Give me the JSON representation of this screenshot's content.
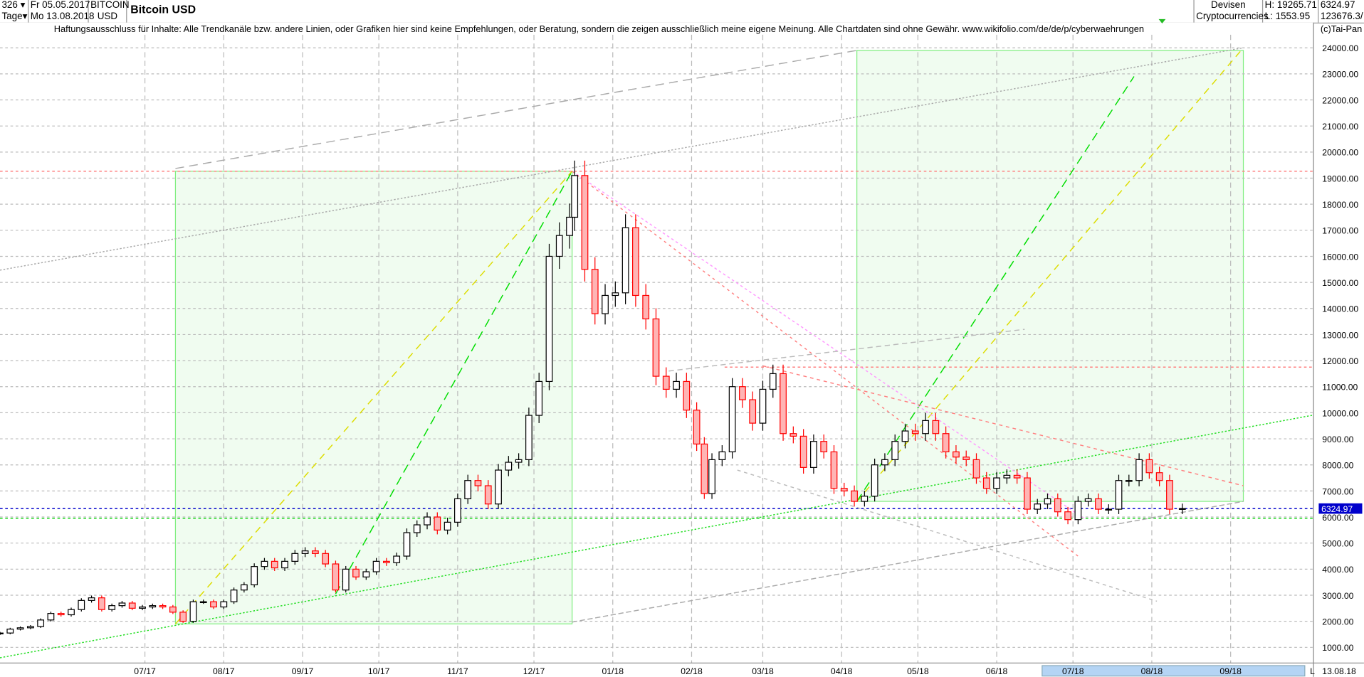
{
  "header": {
    "bar_count": "326",
    "period": "Tage",
    "start_date": "Fr 05.05.2017",
    "end_date": "Mo 13.08.2018",
    "symbol_line1": "BITCOIN",
    "symbol_line2": "USD",
    "title": "Bitcoin USD",
    "category_line1": "Devisen",
    "category_line2": "Cryptocurrencies",
    "high": "H: 19265.71",
    "low": "L: 1553.95",
    "last": "6324.97",
    "volume": "123676.3/"
  },
  "disclaimer": "Haftungsausschluss für Inhalte: Alle Trendkanäle bzw. andere Linien, oder Grafiken hier sind keine Empfehlungen, oder Beratung, sondern die zeigen ausschließlich meine eigene Meinung. Alle Chartdaten sind ohne Gewähr.  www.wikifolio.com/de/de/p/cyberwaehrungen",
  "copyright": "(c)Tai-Pan",
  "footer": {
    "scroll_marker": "L",
    "last_date": "13.08.18"
  },
  "colors": {
    "up_border": "#000000",
    "up_fill": "#ffffff",
    "down_border": "#ff0000",
    "down_fill": "#ffb4b4",
    "box_fill": "#f0fcf0",
    "box_border": "#80ee80",
    "current_price": "#0000cc",
    "grid": "#bbbbbb"
  },
  "chart_data": {
    "type": "candlestick",
    "title": "Bitcoin USD",
    "ylim": [
      0,
      25000
    ],
    "xlim": [
      "2017-05-05",
      "2018-10-08"
    ],
    "grid": true,
    "y_ticks": [
      1000,
      2000,
      3000,
      4000,
      5000,
      6000,
      7000,
      8000,
      9000,
      10000,
      11000,
      12000,
      13000,
      14000,
      15000,
      16000,
      17000,
      18000,
      19000,
      20000,
      21000,
      22000,
      23000,
      24000
    ],
    "x_ticks": [
      {
        "date": "2017-07-01",
        "label": "07/17"
      },
      {
        "date": "2017-08-01",
        "label": "08/17"
      },
      {
        "date": "2017-09-01",
        "label": "09/17"
      },
      {
        "date": "2017-10-01",
        "label": "10/17"
      },
      {
        "date": "2017-11-01",
        "label": "11/17"
      },
      {
        "date": "2017-12-01",
        "label": "12/17"
      },
      {
        "date": "2018-01-01",
        "label": "01/18"
      },
      {
        "date": "2018-02-01",
        "label": "02/18"
      },
      {
        "date": "2018-03-01",
        "label": "03/18"
      },
      {
        "date": "2018-04-01",
        "label": "04/18"
      },
      {
        "date": "2018-05-01",
        "label": "05/18"
      },
      {
        "date": "2018-06-01",
        "label": "06/18"
      },
      {
        "date": "2018-07-01",
        "label": "07/18"
      },
      {
        "date": "2018-08-01",
        "label": "08/18"
      },
      {
        "date": "2018-09-01",
        "label": "09/18"
      }
    ],
    "current_price": {
      "value": 6324.97,
      "label": "6324.97"
    },
    "closes": [
      [
        "2017-05-05",
        1550
      ],
      [
        "2017-05-09",
        1700
      ],
      [
        "2017-05-13",
        1750
      ],
      [
        "2017-05-17",
        1800
      ],
      [
        "2017-05-21",
        2050
      ],
      [
        "2017-05-25",
        2300
      ],
      [
        "2017-05-29",
        2250
      ],
      [
        "2017-06-02",
        2450
      ],
      [
        "2017-06-06",
        2800
      ],
      [
        "2017-06-10",
        2900
      ],
      [
        "2017-06-14",
        2450
      ],
      [
        "2017-06-18",
        2600
      ],
      [
        "2017-06-22",
        2700
      ],
      [
        "2017-06-26",
        2500
      ],
      [
        "2017-06-30",
        2550
      ],
      [
        "2017-07-04",
        2600
      ],
      [
        "2017-07-08",
        2550
      ],
      [
        "2017-07-12",
        2350
      ],
      [
        "2017-07-16",
        2000
      ],
      [
        "2017-07-20",
        2750
      ],
      [
        "2017-07-24",
        2750
      ],
      [
        "2017-07-28",
        2550
      ],
      [
        "2017-08-01",
        2750
      ],
      [
        "2017-08-05",
        3200
      ],
      [
        "2017-08-09",
        3400
      ],
      [
        "2017-08-13",
        4100
      ],
      [
        "2017-08-17",
        4300
      ],
      [
        "2017-08-21",
        4050
      ],
      [
        "2017-08-25",
        4300
      ],
      [
        "2017-08-29",
        4600
      ],
      [
        "2017-09-02",
        4700
      ],
      [
        "2017-09-06",
        4600
      ],
      [
        "2017-09-10",
        4200
      ],
      [
        "2017-09-14",
        3200
      ],
      [
        "2017-09-18",
        4000
      ],
      [
        "2017-09-22",
        3700
      ],
      [
        "2017-09-26",
        3900
      ],
      [
        "2017-09-30",
        4300
      ],
      [
        "2017-10-04",
        4250
      ],
      [
        "2017-10-08",
        4500
      ],
      [
        "2017-10-12",
        5400
      ],
      [
        "2017-10-16",
        5700
      ],
      [
        "2017-10-20",
        6000
      ],
      [
        "2017-10-24",
        5500
      ],
      [
        "2017-10-28",
        5800
      ],
      [
        "2017-11-01",
        6700
      ],
      [
        "2017-11-05",
        7400
      ],
      [
        "2017-11-09",
        7200
      ],
      [
        "2017-11-13",
        6500
      ],
      [
        "2017-11-17",
        7800
      ],
      [
        "2017-11-21",
        8100
      ],
      [
        "2017-11-25",
        8200
      ],
      [
        "2017-11-29",
        9900
      ],
      [
        "2017-12-03",
        11200
      ],
      [
        "2017-12-07",
        16000
      ],
      [
        "2017-12-11",
        16800
      ],
      [
        "2017-12-15",
        17500
      ],
      [
        "2017-12-17",
        19100
      ],
      [
        "2017-12-21",
        15500
      ],
      [
        "2017-12-25",
        13800
      ],
      [
        "2017-12-29",
        14500
      ],
      [
        "2018-01-02",
        14600
      ],
      [
        "2018-01-06",
        17100
      ],
      [
        "2018-01-10",
        14500
      ],
      [
        "2018-01-14",
        13600
      ],
      [
        "2018-01-18",
        11400
      ],
      [
        "2018-01-22",
        10900
      ],
      [
        "2018-01-26",
        11200
      ],
      [
        "2018-01-30",
        10100
      ],
      [
        "2018-02-03",
        8800
      ],
      [
        "2018-02-06",
        6900
      ],
      [
        "2018-02-09",
        8200
      ],
      [
        "2018-02-13",
        8500
      ],
      [
        "2018-02-17",
        11000
      ],
      [
        "2018-02-21",
        10500
      ],
      [
        "2018-02-25",
        9600
      ],
      [
        "2018-03-01",
        10900
      ],
      [
        "2018-03-05",
        11500
      ],
      [
        "2018-03-09",
        9200
      ],
      [
        "2018-03-13",
        9100
      ],
      [
        "2018-03-17",
        7900
      ],
      [
        "2018-03-21",
        8900
      ],
      [
        "2018-03-25",
        8500
      ],
      [
        "2018-03-29",
        7100
      ],
      [
        "2018-04-02",
        7000
      ],
      [
        "2018-04-06",
        6600
      ],
      [
        "2018-04-10",
        6800
      ],
      [
        "2018-04-14",
        8000
      ],
      [
        "2018-04-18",
        8200
      ],
      [
        "2018-04-22",
        8900
      ],
      [
        "2018-04-26",
        9300
      ],
      [
        "2018-04-30",
        9200
      ],
      [
        "2018-05-04",
        9700
      ],
      [
        "2018-05-08",
        9200
      ],
      [
        "2018-05-12",
        8500
      ],
      [
        "2018-05-16",
        8300
      ],
      [
        "2018-05-20",
        8200
      ],
      [
        "2018-05-24",
        7500
      ],
      [
        "2018-05-28",
        7100
      ],
      [
        "2018-06-01",
        7500
      ],
      [
        "2018-06-05",
        7600
      ],
      [
        "2018-06-09",
        7500
      ],
      [
        "2018-06-13",
        6300
      ],
      [
        "2018-06-17",
        6500
      ],
      [
        "2018-06-21",
        6700
      ],
      [
        "2018-06-25",
        6200
      ],
      [
        "2018-06-29",
        5900
      ],
      [
        "2018-07-03",
        6600
      ],
      [
        "2018-07-07",
        6700
      ],
      [
        "2018-07-11",
        6300
      ],
      [
        "2018-07-15",
        6300
      ],
      [
        "2018-07-19",
        7400
      ],
      [
        "2018-07-23",
        7400
      ],
      [
        "2018-07-27",
        8200
      ],
      [
        "2018-07-31",
        7700
      ],
      [
        "2018-08-04",
        7400
      ],
      [
        "2018-08-08",
        6300
      ],
      [
        "2018-08-13",
        6325
      ]
    ],
    "drawings": [
      {
        "kind": "rect",
        "from": [
          "2017-07-13",
          1900
        ],
        "to": [
          "2017-12-16",
          19266
        ]
      },
      {
        "kind": "rect",
        "from": [
          "2018-04-07",
          6600
        ],
        "to": [
          "2018-09-06",
          23900
        ]
      },
      {
        "kind": "hline",
        "value": 19266,
        "from": "2017-05-05",
        "color": "#ff8080",
        "dash": "3,3"
      },
      {
        "kind": "hline",
        "value": 11750,
        "from": "2018-02-14",
        "color": "#ff8080",
        "dash": "3,3"
      },
      {
        "kind": "hline",
        "value": 6324.97,
        "from": "2017-05-05",
        "color": "#0000cc",
        "dash": "3,3"
      },
      {
        "kind": "hline",
        "value": 5950,
        "from": "2017-05-05",
        "color": "#22dd22",
        "dash": "3,3"
      },
      {
        "kind": "line",
        "from": [
          "2017-05-05",
          600
        ],
        "to": [
          "2018-10-03",
          9900
        ],
        "color": "#22dd22",
        "dash": "2,2"
      },
      {
        "kind": "line",
        "from": [
          "2017-05-05",
          15470
        ],
        "to": [
          "2018-09-06",
          24000
        ],
        "color": "#aaaaaa",
        "dash": "2,2"
      },
      {
        "kind": "line",
        "from": [
          "2017-07-13",
          19370
        ],
        "to": [
          "2018-04-07",
          23900
        ],
        "color": "#aaaaaa",
        "dash": "10,6"
      },
      {
        "kind": "line",
        "from": [
          "2017-12-16",
          1970
        ],
        "to": [
          "2018-09-06",
          6600
        ],
        "color": "#aaaaaa",
        "dash": "6,3"
      },
      {
        "kind": "line",
        "from": [
          "2017-07-13",
          1900
        ],
        "to": [
          "2017-12-16",
          19266
        ],
        "color": "#dddd00",
        "dash": "8,6"
      },
      {
        "kind": "line",
        "from": [
          "2018-04-07",
          6600
        ],
        "to": [
          "2018-09-06",
          24000
        ],
        "color": "#dddd00",
        "dash": "8,6"
      },
      {
        "kind": "line",
        "from": [
          "2017-09-14",
          3050
        ],
        "to": [
          "2017-12-16",
          19266
        ],
        "color": "#00dd00",
        "dash": "10,6"
      },
      {
        "kind": "line",
        "from": [
          "2018-04-07",
          6600
        ],
        "to": [
          "2018-07-25",
          22900
        ],
        "color": "#00dd00",
        "dash": "10,6"
      },
      {
        "kind": "line",
        "from": [
          "2017-12-16",
          19266
        ],
        "to": [
          "2018-07-06",
          5900
        ],
        "color": "#ff99ff",
        "dash": "3,3"
      },
      {
        "kind": "line",
        "from": [
          "2017-12-16",
          19266
        ],
        "to": [
          "2018-07-03",
          4500
        ],
        "color": "#ff8080",
        "dash": "3,4"
      },
      {
        "kind": "line",
        "from": [
          "2018-03-01",
          11800
        ],
        "to": [
          "2018-09-06",
          7200
        ],
        "color": "#ff8080",
        "dash": "4,4"
      },
      {
        "kind": "line",
        "from": [
          "2018-02-19",
          7800
        ],
        "to": [
          "2018-08-03",
          2770
        ],
        "color": "#bbbbbb",
        "dash": "4,4"
      },
      {
        "kind": "line",
        "from": [
          "2018-01-23",
          11600
        ],
        "to": [
          "2018-06-12",
          13200
        ],
        "color": "#bbbbbb",
        "dash": "6,4"
      }
    ]
  }
}
